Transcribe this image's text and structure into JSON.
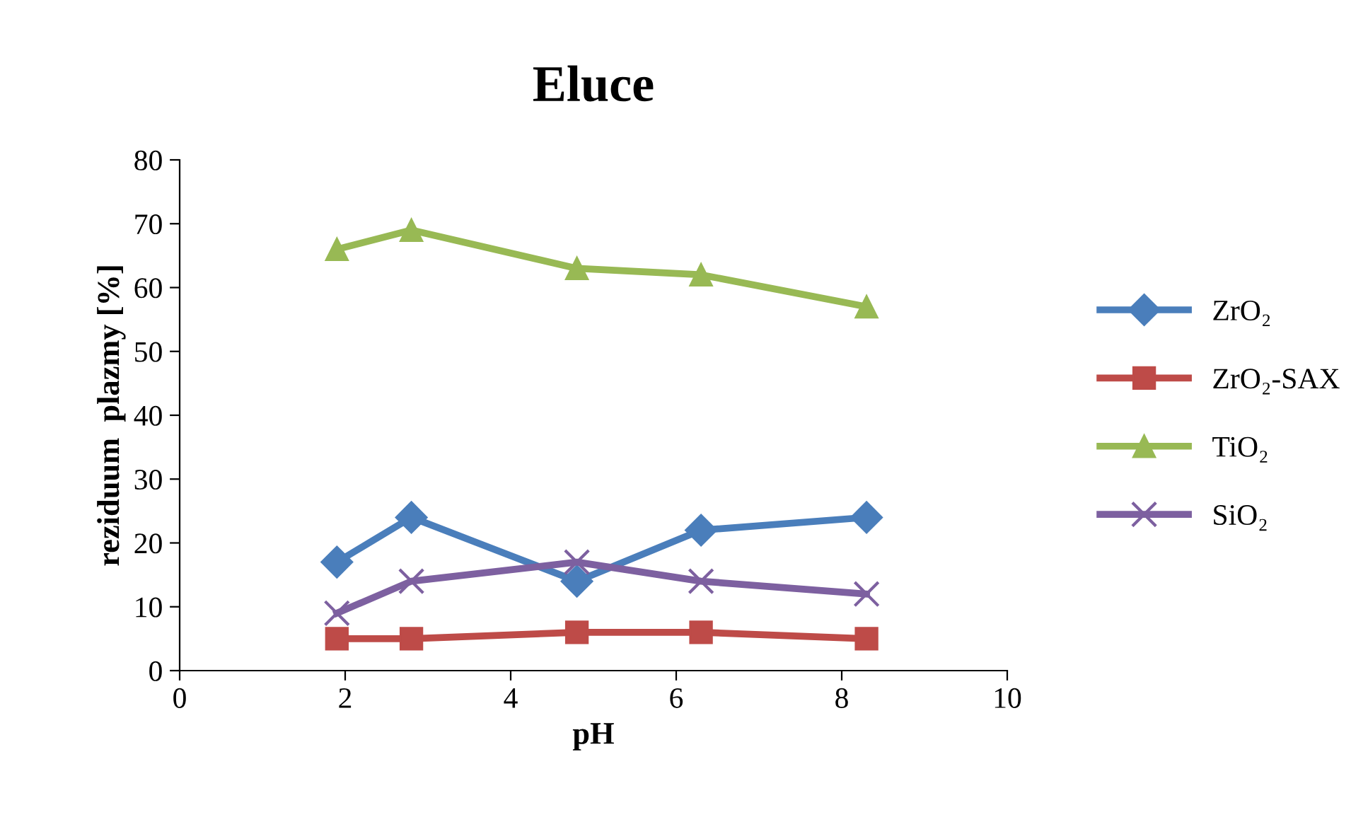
{
  "chart_data": {
    "type": "line",
    "title": "Eluce",
    "xlabel": "pH",
    "ylabel": "reziduum  plazmy [%]",
    "x": [
      1.9,
      2.8,
      4.8,
      6.3,
      8.3
    ],
    "series": [
      {
        "name": "ZrO₂",
        "color": "#4a7ebb",
        "marker": "diamond",
        "values": [
          17,
          24,
          14,
          22,
          24
        ]
      },
      {
        "name": "ZrO₂-SAX",
        "color": "#be4b48",
        "marker": "square",
        "values": [
          5,
          5,
          6,
          6,
          5
        ]
      },
      {
        "name": "TiO₂",
        "color": "#98b954",
        "marker": "triangle",
        "values": [
          66,
          69,
          63,
          62,
          57
        ]
      },
      {
        "name": "SiO₂",
        "color": "#7d60a0",
        "marker": "cross",
        "values": [
          9,
          14,
          17,
          14,
          12
        ]
      }
    ],
    "xlim": [
      0,
      10
    ],
    "xticks": [
      0,
      2,
      4,
      6,
      8,
      10
    ],
    "ylim": [
      0,
      80
    ],
    "yticks": [
      0,
      10,
      20,
      30,
      40,
      50,
      60,
      70,
      80
    ],
    "grid": false,
    "legend": "right",
    "line_style": "solid"
  }
}
